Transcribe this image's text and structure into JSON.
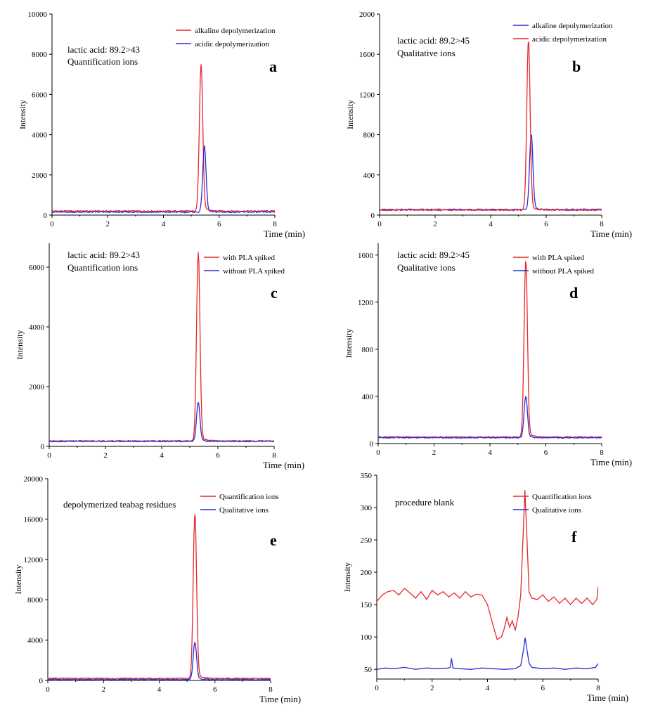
{
  "figure": {
    "x_axis_label": "Time (min)",
    "y_axis_label": "Intensity"
  },
  "chart_data": [
    {
      "type": "line",
      "panel_letter": "a",
      "annotation_lines": [
        "lactic acid: 89.2>43",
        "Quantification ions"
      ],
      "xlabel": "Time (min)",
      "ylabel": "Intensity",
      "xlim": [
        0,
        8
      ],
      "ylim": [
        0,
        10000
      ],
      "xticks": [
        0,
        2,
        4,
        6,
        8
      ],
      "yticks": [
        0,
        2000,
        4000,
        6000,
        8000,
        10000
      ],
      "legend_position": "top-right",
      "series": [
        {
          "name": "alkaline depolymerization",
          "color": "#e8262b",
          "baseline": 200,
          "peaks": [
            {
              "x": 5.35,
              "y": 7500,
              "width": 0.06
            }
          ]
        },
        {
          "name": "acidic depolymerization",
          "color": "#2b2bd6",
          "baseline": 150,
          "peaks": [
            {
              "x": 5.47,
              "y": 3380,
              "width": 0.06
            }
          ]
        }
      ]
    },
    {
      "type": "line",
      "panel_letter": "b",
      "annotation_lines": [
        "lactic acid: 89.2>45",
        "Qualitative ions"
      ],
      "xlabel": "Time (min)",
      "ylabel": "Intensity",
      "xlim": [
        0,
        8
      ],
      "ylim": [
        0,
        2000
      ],
      "xticks": [
        0,
        2,
        4,
        6,
        8
      ],
      "yticks": [
        0,
        400,
        800,
        1200,
        1600,
        2000
      ],
      "legend_position": "top-right",
      "series": [
        {
          "name": "alkaline depolymerization",
          "color": "#2b2bd6",
          "baseline": 55,
          "peaks": [
            {
              "x": 5.46,
              "y": 800,
              "width": 0.06
            }
          ]
        },
        {
          "name": "acidic depolymerization",
          "color": "#e8262b",
          "baseline": 50,
          "peaks": [
            {
              "x": 5.36,
              "y": 1730,
              "width": 0.06
            }
          ]
        }
      ]
    },
    {
      "type": "line",
      "panel_letter": "c",
      "annotation_lines": [
        "lactic acid: 89.2>43",
        "Quantification ions"
      ],
      "xlabel": "Time (min)",
      "ylabel": "Intensity",
      "xlim": [
        0,
        8
      ],
      "ylim": [
        0,
        6800
      ],
      "xticks": [
        0,
        2,
        4,
        6,
        8
      ],
      "yticks": [
        0,
        2000,
        4000,
        6000
      ],
      "legend_position": "top-right",
      "series": [
        {
          "name": "with PLA spiked",
          "color": "#e8262b",
          "baseline": 180,
          "peaks": [
            {
              "x": 5.3,
              "y": 6480,
              "width": 0.06
            }
          ]
        },
        {
          "name": "without PLA spiked",
          "color": "#2b2bd6",
          "baseline": 170,
          "peaks": [
            {
              "x": 5.3,
              "y": 1480,
              "width": 0.06
            }
          ]
        }
      ]
    },
    {
      "type": "line",
      "panel_letter": "d",
      "annotation_lines": [
        "lactic acid: 89.2>45",
        "Qualitative ions"
      ],
      "xlabel": "Time (min)",
      "ylabel": "Intensity",
      "xlim": [
        0,
        8
      ],
      "ylim": [
        0,
        1700
      ],
      "xticks": [
        0,
        2,
        4,
        6,
        8
      ],
      "yticks": [
        0,
        400,
        800,
        1200,
        1600
      ],
      "legend_position": "top-right",
      "series": [
        {
          "name": "with PLA spiked",
          "color": "#e8262b",
          "baseline": 55,
          "peaks": [
            {
              "x": 5.28,
              "y": 1550,
              "width": 0.06
            }
          ]
        },
        {
          "name": "without PLA spiked",
          "color": "#2b2bd6",
          "baseline": 50,
          "peaks": [
            {
              "x": 5.28,
              "y": 400,
              "width": 0.06
            }
          ]
        }
      ]
    },
    {
      "type": "line",
      "panel_letter": "e",
      "annotation_lines": [
        "depolymerized teabag residues"
      ],
      "xlabel": "Time (min)",
      "ylabel": "Intensity",
      "xlim": [
        0,
        8
      ],
      "ylim": [
        0,
        20000
      ],
      "xticks": [
        0,
        2,
        4,
        6,
        8
      ],
      "yticks": [
        0,
        4000,
        8000,
        12000,
        16000,
        20000
      ],
      "legend_position": "top-right",
      "series": [
        {
          "name": "Quantification ions",
          "color": "#e8262b",
          "baseline": 200,
          "peaks": [
            {
              "x": 5.28,
              "y": 16500,
              "width": 0.06
            }
          ]
        },
        {
          "name": "Qualitative ions",
          "color": "#2b2bd6",
          "baseline": 100,
          "peaks": [
            {
              "x": 5.28,
              "y": 3750,
              "width": 0.06
            }
          ]
        }
      ]
    },
    {
      "type": "line",
      "panel_letter": "f",
      "annotation_lines": [
        "procedure blank"
      ],
      "xlabel": "Time (min)",
      "ylabel": "Intensity",
      "xlim": [
        0,
        8
      ],
      "ylim": [
        35,
        350
      ],
      "xticks": [
        0,
        2,
        4,
        6,
        8
      ],
      "yticks": [
        50,
        100,
        150,
        200,
        250,
        300,
        350
      ],
      "legend_position": "top-right",
      "series": [
        {
          "name": "Quantification ions",
          "color": "#e8262b",
          "points": [
            [
              0,
              155
            ],
            [
              0.2,
              165
            ],
            [
              0.4,
              170
            ],
            [
              0.6,
              172
            ],
            [
              0.8,
              165
            ],
            [
              1,
              175
            ],
            [
              1.2,
              168
            ],
            [
              1.4,
              160
            ],
            [
              1.6,
              170
            ],
            [
              1.8,
              158
            ],
            [
              2,
              172
            ],
            [
              2.2,
              165
            ],
            [
              2.4,
              170
            ],
            [
              2.6,
              162
            ],
            [
              2.8,
              168
            ],
            [
              3,
              160
            ],
            [
              3.2,
              170
            ],
            [
              3.4,
              162
            ],
            [
              3.6,
              166
            ],
            [
              3.8,
              165
            ],
            [
              4,
              150
            ],
            [
              4.2,
              118
            ],
            [
              4.35,
              96
            ],
            [
              4.5,
              100
            ],
            [
              4.6,
              112
            ],
            [
              4.7,
              130
            ],
            [
              4.8,
              115
            ],
            [
              4.9,
              125
            ],
            [
              5,
              110
            ],
            [
              5.1,
              130
            ],
            [
              5.2,
              165
            ],
            [
              5.28,
              250
            ],
            [
              5.35,
              327
            ],
            [
              5.42,
              260
            ],
            [
              5.5,
              170
            ],
            [
              5.6,
              160
            ],
            [
              5.8,
              158
            ],
            [
              6,
              165
            ],
            [
              6.2,
              155
            ],
            [
              6.4,
              162
            ],
            [
              6.6,
              152
            ],
            [
              6.8,
              160
            ],
            [
              7,
              150
            ],
            [
              7.2,
              160
            ],
            [
              7.4,
              152
            ],
            [
              7.6,
              160
            ],
            [
              7.8,
              150
            ],
            [
              7.95,
              158
            ],
            [
              8,
              178
            ]
          ]
        },
        {
          "name": "Qualitative ions",
          "color": "#2b2bd6",
          "points": [
            [
              0,
              50
            ],
            [
              0.3,
              52
            ],
            [
              0.6,
              51
            ],
            [
              1,
              53
            ],
            [
              1.4,
              50
            ],
            [
              1.8,
              52
            ],
            [
              2.2,
              51
            ],
            [
              2.6,
              52
            ],
            [
              2.65,
              53
            ],
            [
              2.7,
              67
            ],
            [
              2.75,
              52
            ],
            [
              3,
              51
            ],
            [
              3.4,
              50
            ],
            [
              3.8,
              52
            ],
            [
              4.2,
              51
            ],
            [
              4.6,
              50
            ],
            [
              5,
              51
            ],
            [
              5.2,
              56
            ],
            [
              5.3,
              80
            ],
            [
              5.36,
              99
            ],
            [
              5.42,
              82
            ],
            [
              5.5,
              60
            ],
            [
              5.6,
              53
            ],
            [
              6,
              51
            ],
            [
              6.4,
              52
            ],
            [
              6.8,
              50
            ],
            [
              7.2,
              52
            ],
            [
              7.6,
              51
            ],
            [
              7.9,
              53
            ],
            [
              8,
              59
            ]
          ]
        }
      ]
    }
  ]
}
